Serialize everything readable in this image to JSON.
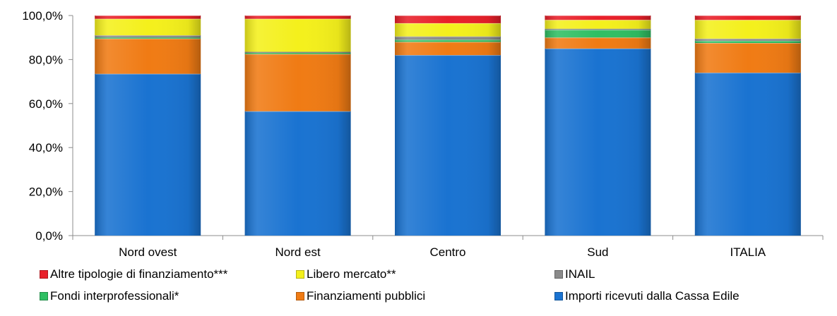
{
  "chart_data": {
    "type": "bar",
    "stacked": true,
    "categories": [
      "Nord ovest",
      "Nord est",
      "Centro",
      "Sud",
      "ITALIA"
    ],
    "ylim": [
      0,
      100
    ],
    "yticks": [
      "0,0%",
      "20,0%",
      "40,0%",
      "60,0%",
      "80,0%",
      "100,0%"
    ],
    "grid": false,
    "legend_position": "bottom",
    "series": [
      {
        "name": "Importi ricevuti dalla Cassa Edile",
        "color": "#1a73d1",
        "values": [
          73.5,
          56.5,
          82.0,
          85.0,
          74.0
        ]
      },
      {
        "name": "Finanziamenti pubblici",
        "color": "#f07b14",
        "values": [
          16.0,
          26.0,
          6.0,
          5.0,
          13.5
        ]
      },
      {
        "name": "Fondi interprofessionali*",
        "color": "#2fbf63",
        "values": [
          0.5,
          0.5,
          1.0,
          3.5,
          1.0
        ]
      },
      {
        "name": "INAIL",
        "color": "#8a8a8a",
        "values": [
          1.0,
          0.5,
          1.5,
          0.5,
          1.0
        ]
      },
      {
        "name": "Libero mercato**",
        "color": "#f4f01c",
        "values": [
          7.5,
          15.0,
          6.0,
          4.0,
          8.5
        ]
      },
      {
        "name": "Altre tipologie di finanziamento***",
        "color": "#e8202a",
        "values": [
          1.5,
          1.5,
          3.5,
          2.0,
          2.0
        ]
      }
    ],
    "legend_order": [
      5,
      4,
      3,
      2,
      1,
      0
    ]
  }
}
